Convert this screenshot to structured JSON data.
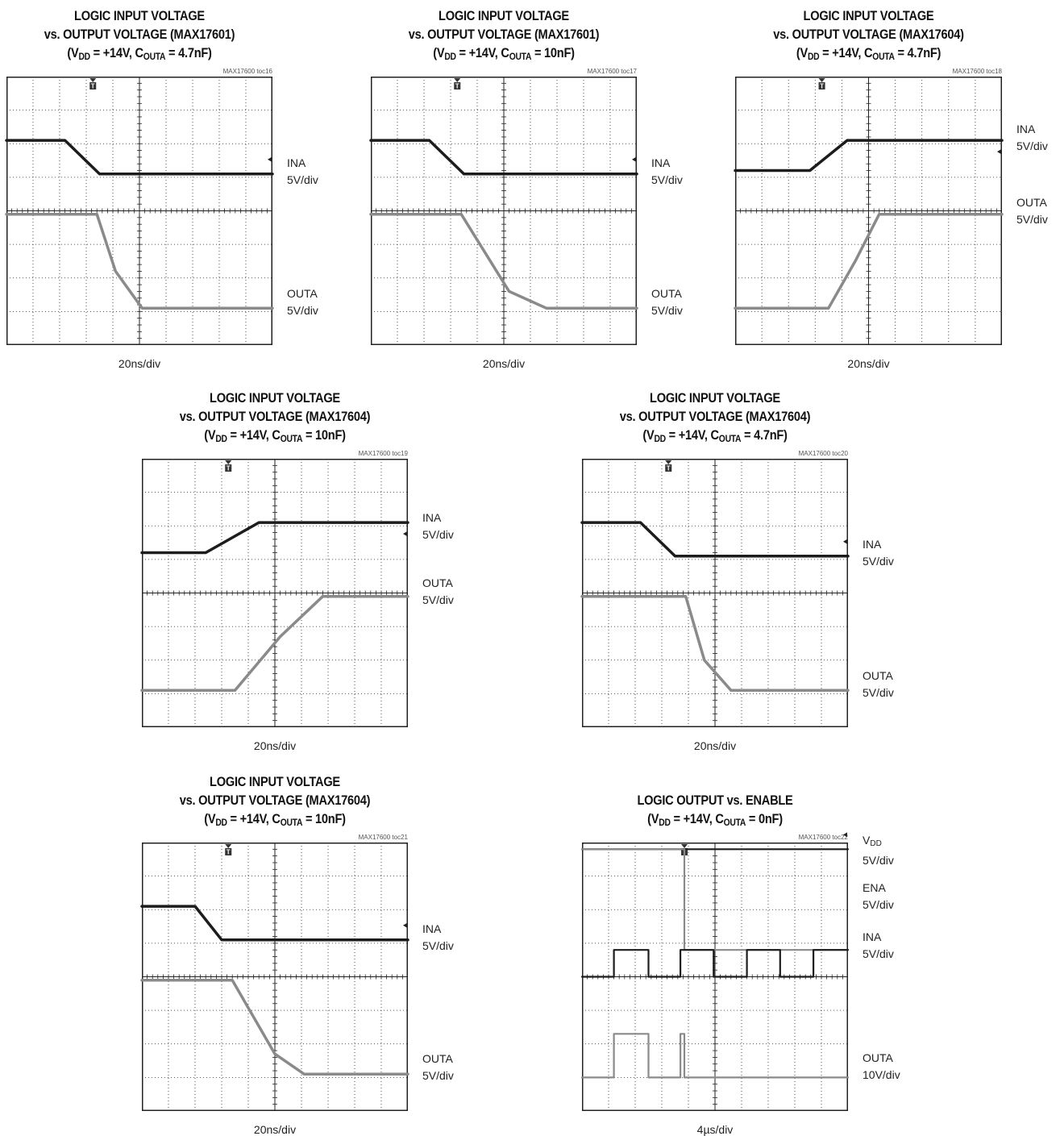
{
  "colors": {
    "dark_trace": "#1c1c1c",
    "light_trace": "#8a8a8a",
    "grid": "#222222"
  },
  "chart_data": [
    {
      "type": "line",
      "id": "toc16",
      "title": [
        "LOGIC INPUT VOLTAGE",
        "vs. OUTPUT VOLTAGE (MAX17601)",
        "(V|DD| = +14V, C|OUTA| = 4.7nF)"
      ],
      "toc_ref": "MAX17600 toc16",
      "xlabel": "20ns/div",
      "x_divisions": 10,
      "y_divisions": 8,
      "series": [
        {
          "name": "INA",
          "scale": "5V/div",
          "color": "dark",
          "points": [
            [
              0,
              6.1
            ],
            [
              2.2,
              6.1
            ],
            [
              3.5,
              5.1
            ],
            [
              10,
              5.1
            ]
          ]
        },
        {
          "name": "OUTA",
          "scale": "5V/div",
          "color": "light",
          "points": [
            [
              0,
              3.9
            ],
            [
              3.4,
              3.9
            ],
            [
              4.1,
              2.2
            ],
            [
              5.1,
              1.1
            ],
            [
              10,
              1.1
            ]
          ]
        }
      ]
    },
    {
      "type": "line",
      "id": "toc17",
      "title": [
        "LOGIC INPUT VOLTAGE",
        "vs. OUTPUT VOLTAGE (MAX17601)",
        "(V|DD| = +14V, C|OUTA| = 10nF)"
      ],
      "toc_ref": "MAX17600 toc17",
      "xlabel": "20ns/div",
      "x_divisions": 10,
      "y_divisions": 8,
      "series": [
        {
          "name": "INA",
          "scale": "5V/div",
          "color": "dark",
          "points": [
            [
              0,
              6.1
            ],
            [
              2.2,
              6.1
            ],
            [
              3.5,
              5.1
            ],
            [
              10,
              5.1
            ]
          ]
        },
        {
          "name": "OUTA",
          "scale": "5V/div",
          "color": "light",
          "points": [
            [
              0,
              3.9
            ],
            [
              3.4,
              3.9
            ],
            [
              5.2,
              1.6
            ],
            [
              6.6,
              1.1
            ],
            [
              10,
              1.1
            ]
          ]
        }
      ]
    },
    {
      "type": "line",
      "id": "toc18",
      "title": [
        "LOGIC INPUT VOLTAGE",
        "vs. OUTPUT VOLTAGE (MAX17604)",
        "(V|DD| = +14V, C|OUTA| = 4.7nF)"
      ],
      "toc_ref": "MAX17600 toc18",
      "xlabel": "20ns/div",
      "x_divisions": 10,
      "y_divisions": 8,
      "series": [
        {
          "name": "INA",
          "scale": "5V/div",
          "color": "dark",
          "points": [
            [
              0,
              5.2
            ],
            [
              2.8,
              5.2
            ],
            [
              4.2,
              6.1
            ],
            [
              10,
              6.1
            ]
          ]
        },
        {
          "name": "OUTA",
          "scale": "5V/div",
          "color": "light",
          "points": [
            [
              0,
              1.1
            ],
            [
              3.5,
              1.1
            ],
            [
              4.5,
              2.5
            ],
            [
              5.4,
              3.9
            ],
            [
              10,
              3.9
            ]
          ]
        }
      ]
    },
    {
      "type": "line",
      "id": "toc19",
      "title": [
        "LOGIC INPUT VOLTAGE",
        "vs. OUTPUT VOLTAGE (MAX17604)",
        "(V|DD| = +14V, C|OUTA| = 10nF)"
      ],
      "toc_ref": "MAX17600 toc19",
      "xlabel": "20ns/div",
      "x_divisions": 10,
      "y_divisions": 8,
      "series": [
        {
          "name": "INA",
          "scale": "5V/div",
          "color": "dark",
          "points": [
            [
              0,
              5.2
            ],
            [
              2.4,
              5.2
            ],
            [
              4.4,
              6.1
            ],
            [
              10,
              6.1
            ]
          ]
        },
        {
          "name": "OUTA",
          "scale": "5V/div",
          "color": "light",
          "points": [
            [
              0,
              1.1
            ],
            [
              3.5,
              1.1
            ],
            [
              5.2,
              2.7
            ],
            [
              6.8,
              3.9
            ],
            [
              10,
              3.9
            ]
          ]
        }
      ]
    },
    {
      "type": "line",
      "id": "toc20",
      "title": [
        "LOGIC INPUT VOLTAGE",
        "vs. OUTPUT VOLTAGE (MAX17604)",
        "(V|DD| = +14V, C|OUTA| = 4.7nF)"
      ],
      "toc_ref": "MAX17600 toc20",
      "xlabel": "20ns/div",
      "x_divisions": 10,
      "y_divisions": 8,
      "series": [
        {
          "name": "INA",
          "scale": "5V/div",
          "color": "dark",
          "points": [
            [
              0,
              6.1
            ],
            [
              2.2,
              6.1
            ],
            [
              3.5,
              5.1
            ],
            [
              10,
              5.1
            ]
          ]
        },
        {
          "name": "OUTA",
          "scale": "5V/div",
          "color": "light",
          "points": [
            [
              0,
              3.9
            ],
            [
              3.9,
              3.9
            ],
            [
              4.6,
              2.0
            ],
            [
              5.6,
              1.1
            ],
            [
              10,
              1.1
            ]
          ]
        }
      ]
    },
    {
      "type": "line",
      "id": "toc21",
      "title": [
        "LOGIC INPUT VOLTAGE",
        "vs. OUTPUT VOLTAGE (MAX17604)",
        "(V|DD| = +14V, C|OUTA| = 10nF)"
      ],
      "toc_ref": "MAX17600 toc21",
      "xlabel": "20ns/div",
      "x_divisions": 10,
      "y_divisions": 8,
      "series": [
        {
          "name": "INA",
          "scale": "5V/div",
          "color": "dark",
          "points": [
            [
              0,
              6.1
            ],
            [
              2.0,
              6.1
            ],
            [
              3.0,
              5.1
            ],
            [
              10,
              5.1
            ]
          ]
        },
        {
          "name": "OUTA",
          "scale": "5V/div",
          "color": "light",
          "points": [
            [
              0,
              3.9
            ],
            [
              3.4,
              3.9
            ],
            [
              5.0,
              1.7
            ],
            [
              6.1,
              1.1
            ],
            [
              10,
              1.1
            ]
          ]
        }
      ]
    },
    {
      "type": "line",
      "id": "toc22",
      "title": [
        "LOGIC OUTPUT vs. ENABLE",
        "(V|DD| = +14V, C|OUTA| = 0nF)"
      ],
      "toc_ref": "MAX17600 toc22",
      "xlabel": "4µs/div",
      "x_divisions": 10,
      "y_divisions": 8,
      "series": [
        {
          "name": "V|DD|",
          "scale": "5V/div",
          "color": "dark",
          "points": [
            [
              0,
              7.8
            ],
            [
              10,
              7.8
            ]
          ]
        },
        {
          "name": "ENA",
          "scale": "5V/div",
          "color": "light",
          "points": [
            [
              0,
              7.8
            ],
            [
              3.85,
              7.8
            ],
            [
              3.85,
              4.8
            ],
            [
              10,
              4.8
            ]
          ]
        },
        {
          "name": "INA",
          "scale": "5V/div",
          "color": "dark",
          "points": [
            [
              0,
              4.0
            ],
            [
              1.2,
              4.0
            ],
            [
              1.2,
              4.8
            ],
            [
              2.5,
              4.8
            ],
            [
              2.5,
              4.0
            ],
            [
              3.7,
              4.0
            ],
            [
              3.7,
              4.8
            ],
            [
              4.95,
              4.8
            ],
            [
              4.95,
              4.0
            ],
            [
              6.2,
              4.0
            ],
            [
              6.2,
              4.8
            ],
            [
              7.45,
              4.8
            ],
            [
              7.45,
              4.0
            ],
            [
              8.7,
              4.0
            ],
            [
              8.7,
              4.8
            ],
            [
              10,
              4.8
            ]
          ]
        },
        {
          "name": "OUTA",
          "scale": "10V/div",
          "color": "light",
          "points": [
            [
              0,
              1.0
            ],
            [
              1.2,
              1.0
            ],
            [
              1.2,
              2.3
            ],
            [
              2.5,
              2.3
            ],
            [
              2.5,
              1.0
            ],
            [
              3.7,
              1.0
            ],
            [
              3.7,
              2.3
            ],
            [
              3.85,
              2.3
            ],
            [
              3.85,
              1.0
            ],
            [
              10,
              1.0
            ]
          ]
        }
      ]
    }
  ]
}
